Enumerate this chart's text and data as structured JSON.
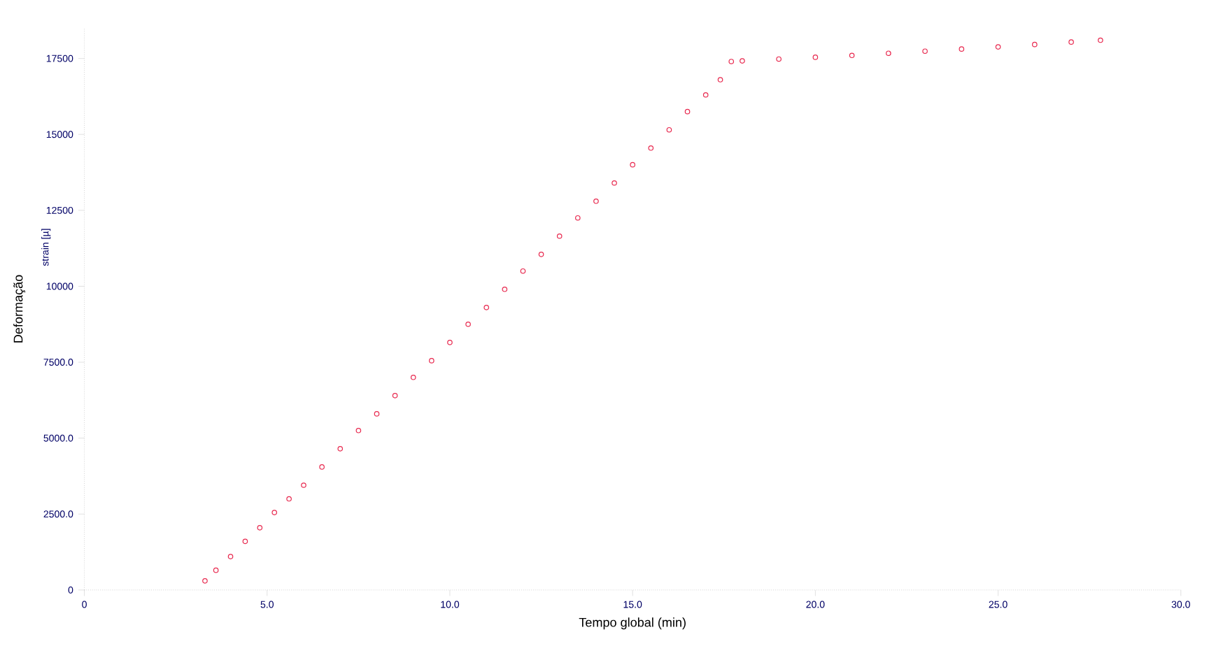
{
  "chart_data": {
    "type": "scatter",
    "xlabel": "Tempo global (min)",
    "ylabel": "Deformação",
    "y2label": "strain [µ]",
    "series": [
      {
        "color": "#e8284e",
        "x": [
          3.3,
          3.6,
          4.0,
          4.4,
          4.8,
          5.2,
          5.6,
          6.0,
          6.5,
          7.0,
          7.5,
          8.0,
          8.5,
          9.0,
          9.5,
          10.0,
          10.5,
          11.0,
          11.5,
          12.0,
          12.5,
          13.0,
          13.5,
          14.0,
          14.5,
          15.0,
          15.5,
          16.0,
          16.5,
          17.0,
          17.4,
          17.7,
          18.0,
          19.0,
          20.0,
          21.0,
          22.0,
          23.0,
          24.0,
          25.0,
          26.0,
          27.0,
          27.8
        ],
        "values": [
          300,
          650,
          1100,
          1600,
          2050,
          2550,
          3000,
          3450,
          4050,
          4650,
          5250,
          5800,
          6400,
          7000,
          7550,
          8150,
          8750,
          9300,
          9900,
          10500,
          11050,
          11650,
          12250,
          12800,
          13400,
          14000,
          14550,
          15150,
          15750,
          16300,
          16800,
          17400,
          17420,
          17480,
          17540,
          17600,
          17670,
          17740,
          17810,
          17880,
          17960,
          18040,
          18100
        ]
      }
    ],
    "marker": "circle",
    "grid": false,
    "xlim": [
      0,
      30
    ],
    "ylim": [
      0,
      18500
    ],
    "xticks": [
      0,
      {
        "value": 5,
        "label": "5.0"
      },
      {
        "value": 10,
        "label": "10.0"
      },
      {
        "value": 15,
        "label": "15.0"
      },
      {
        "value": 20,
        "label": "20.0"
      },
      {
        "value": 25,
        "label": "25.0"
      },
      {
        "value": 30,
        "label": "30.0"
      }
    ],
    "yticks": [
      0,
      {
        "value": 2500,
        "label": "2500.0"
      },
      {
        "value": 5000,
        "label": "5000.0"
      },
      {
        "value": 7500,
        "label": "7500.0"
      },
      10000,
      12500,
      15000,
      17500
    ]
  }
}
